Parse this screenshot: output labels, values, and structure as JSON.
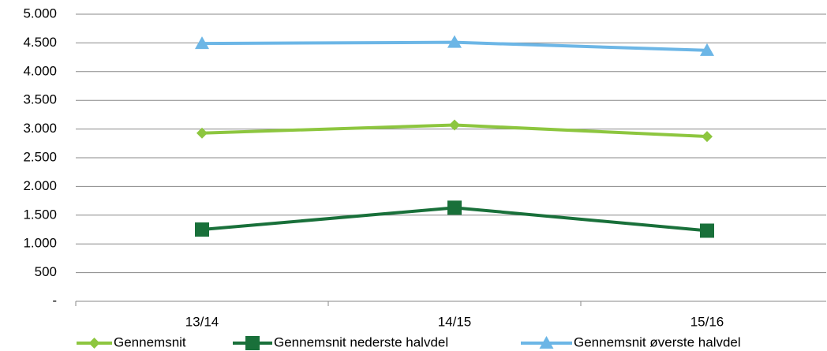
{
  "chart_data": {
    "type": "line",
    "categories": [
      "13/14",
      "14/15",
      "15/16"
    ],
    "series": [
      {
        "name": "Gennemsnit",
        "color": "#8dc63f",
        "marker": "diamond",
        "values": [
          2930,
          3070,
          2870
        ]
      },
      {
        "name": "Gennemsnit nederste halvdel",
        "color": "#19703a",
        "marker": "square",
        "values": [
          1250,
          1630,
          1230
        ]
      },
      {
        "name": "Gennemsnit øverste halvdel",
        "color": "#6cb6e6",
        "marker": "triangle",
        "values": [
          4490,
          4510,
          4370
        ]
      }
    ],
    "ylim": [
      0,
      5000
    ],
    "yticks": [
      {
        "value": 0,
        "label": "-"
      },
      500,
      {
        "value": 1000,
        "label": "1.000"
      },
      {
        "value": 1500,
        "label": "1.500"
      },
      {
        "value": 2000,
        "label": "2.000"
      },
      {
        "value": 2500,
        "label": "2.500"
      },
      {
        "value": 3000,
        "label": "3.000"
      },
      {
        "value": 3500,
        "label": "3.500"
      },
      {
        "value": 4000,
        "label": "4.000"
      },
      {
        "value": 4500,
        "label": "4.500"
      },
      {
        "value": 5000,
        "label": "5.000"
      }
    ],
    "grid": true,
    "legend": "bottom"
  }
}
